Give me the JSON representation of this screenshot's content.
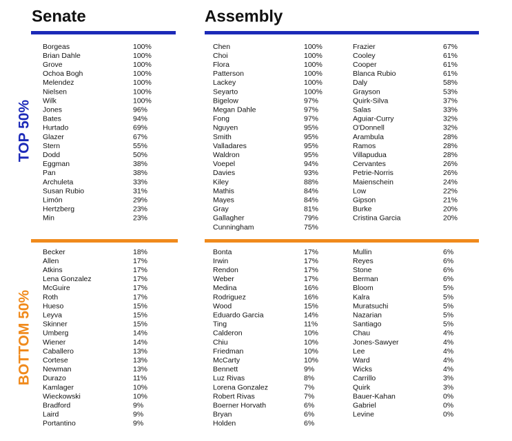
{
  "headers": {
    "senate": "Senate",
    "assembly": "Assembly"
  },
  "sections": [
    {
      "label": "TOP 50%",
      "senate": [
        [
          "Borgeas",
          "100%"
        ],
        [
          "Brian Dahle",
          "100%"
        ],
        [
          "Grove",
          "100%"
        ],
        [
          "Ochoa Bogh",
          "100%"
        ],
        [
          "Melendez",
          "100%"
        ],
        [
          "Nielsen",
          "100%"
        ],
        [
          "Wilk",
          "100%"
        ],
        [
          "Jones",
          "96%"
        ],
        [
          "Bates",
          "94%"
        ],
        [
          "Hurtado",
          "69%"
        ],
        [
          "Glazer",
          "67%"
        ],
        [
          "Stern",
          "55%"
        ],
        [
          "Dodd",
          "50%"
        ],
        [
          "Eggman",
          "38%"
        ],
        [
          "Pan",
          "38%"
        ],
        [
          "Archuleta",
          "33%"
        ],
        [
          "Susan Rubio",
          "31%"
        ],
        [
          "Limón",
          "29%"
        ],
        [
          "Hertzberg",
          "23%"
        ],
        [
          "Min",
          "23%"
        ]
      ],
      "assembly_left": [
        [
          "Chen",
          "100%"
        ],
        [
          "Choi",
          "100%"
        ],
        [
          "Flora",
          "100%"
        ],
        [
          "Patterson",
          "100%"
        ],
        [
          "Lackey",
          "100%"
        ],
        [
          "Seyarto",
          "100%"
        ],
        [
          "Bigelow",
          "97%"
        ],
        [
          "Megan Dahle",
          "97%"
        ],
        [
          "Fong",
          "97%"
        ],
        [
          "Nguyen",
          "95%"
        ],
        [
          "Smith",
          "95%"
        ],
        [
          "Valladares",
          "95%"
        ],
        [
          "Waldron",
          "95%"
        ],
        [
          "Voepel",
          "94%"
        ],
        [
          "Davies",
          "93%"
        ],
        [
          "Kiley",
          "88%"
        ],
        [
          "Mathis",
          "84%"
        ],
        [
          "Mayes",
          "84%"
        ],
        [
          "Gray",
          "81%"
        ],
        [
          "Gallagher",
          "79%"
        ],
        [
          "Cunningham",
          "75%"
        ]
      ],
      "assembly_right": [
        [
          "Frazier",
          "67%"
        ],
        [
          "Cooley",
          "61%"
        ],
        [
          "Cooper",
          "61%"
        ],
        [
          "Blanca Rubio",
          "61%"
        ],
        [
          "Daly",
          "58%"
        ],
        [
          "Grayson",
          "53%"
        ],
        [
          "Quirk-Silva",
          "37%"
        ],
        [
          "Salas",
          "33%"
        ],
        [
          "Aguiar-Curry",
          "32%"
        ],
        [
          "O'Donnell",
          "32%"
        ],
        [
          "Arambula",
          "28%"
        ],
        [
          "Ramos",
          "28%"
        ],
        [
          "Villapudua",
          "28%"
        ],
        [
          "Cervantes",
          "26%"
        ],
        [
          "Petrie-Norris",
          "26%"
        ],
        [
          "Maienschein",
          "24%"
        ],
        [
          "Low",
          "22%"
        ],
        [
          "Gipson",
          "21%"
        ],
        [
          "Burke",
          "20%"
        ],
        [
          "Cristina Garcia",
          "20%"
        ]
      ]
    },
    {
      "label": "BOTTOM 50%",
      "senate": [
        [
          "Becker",
          "18%"
        ],
        [
          "Allen",
          "17%"
        ],
        [
          "Atkins",
          "17%"
        ],
        [
          "Lena Gonzalez",
          "17%"
        ],
        [
          "McGuire",
          "17%"
        ],
        [
          "Roth",
          "17%"
        ],
        [
          "Hueso",
          "15%"
        ],
        [
          "Leyva",
          "15%"
        ],
        [
          "Skinner",
          "15%"
        ],
        [
          "Umberg",
          "14%"
        ],
        [
          "Wiener",
          "14%"
        ],
        [
          "Caballero",
          "13%"
        ],
        [
          "Cortese",
          "13%"
        ],
        [
          "Newman",
          "13%"
        ],
        [
          "Durazo",
          "11%"
        ],
        [
          "Kamlager",
          "10%"
        ],
        [
          "Wieckowski",
          "10%"
        ],
        [
          "Bradford",
          "9%"
        ],
        [
          "Laird",
          "9%"
        ],
        [
          "Portantino",
          "9%"
        ]
      ],
      "assembly_left": [
        [
          "Bonta",
          "17%"
        ],
        [
          "Irwin",
          "17%"
        ],
        [
          "Rendon",
          "17%"
        ],
        [
          "Weber",
          "17%"
        ],
        [
          "Medina",
          "16%"
        ],
        [
          "Rodriguez",
          "16%"
        ],
        [
          "Wood",
          "15%"
        ],
        [
          "Eduardo Garcia",
          "14%"
        ],
        [
          "Ting",
          "11%"
        ],
        [
          "Calderon",
          "10%"
        ],
        [
          "Chiu",
          "10%"
        ],
        [
          "Friedman",
          "10%"
        ],
        [
          "McCarty",
          "10%"
        ],
        [
          "Bennett",
          "9%"
        ],
        [
          "Luz Rivas",
          "8%"
        ],
        [
          "Lorena Gonzalez",
          "7%"
        ],
        [
          "Robert Rivas",
          "7%"
        ],
        [
          "Boerner Horvath",
          "6%"
        ],
        [
          "Bryan",
          "6%"
        ],
        [
          "Holden",
          "6%"
        ]
      ],
      "assembly_right": [
        [
          "Mullin",
          "6%"
        ],
        [
          "Reyes",
          "6%"
        ],
        [
          "Stone",
          "6%"
        ],
        [
          "Berman",
          "6%"
        ],
        [
          "Bloom",
          "5%"
        ],
        [
          "Kalra",
          "5%"
        ],
        [
          "Muratsuchi",
          "5%"
        ],
        [
          "Nazarian",
          "5%"
        ],
        [
          "Santiago",
          "5%"
        ],
        [
          "Chau",
          "4%"
        ],
        [
          "Jones-Sawyer",
          "4%"
        ],
        [
          "Lee",
          "4%"
        ],
        [
          "Ward",
          "4%"
        ],
        [
          "Wicks",
          "4%"
        ],
        [
          "Carrillo",
          "3%"
        ],
        [
          "Quirk",
          "3%"
        ],
        [
          "Bauer-Kahan",
          "0%"
        ],
        [
          "Gabriel",
          "0%"
        ],
        [
          "Levine",
          "0%"
        ]
      ]
    }
  ]
}
